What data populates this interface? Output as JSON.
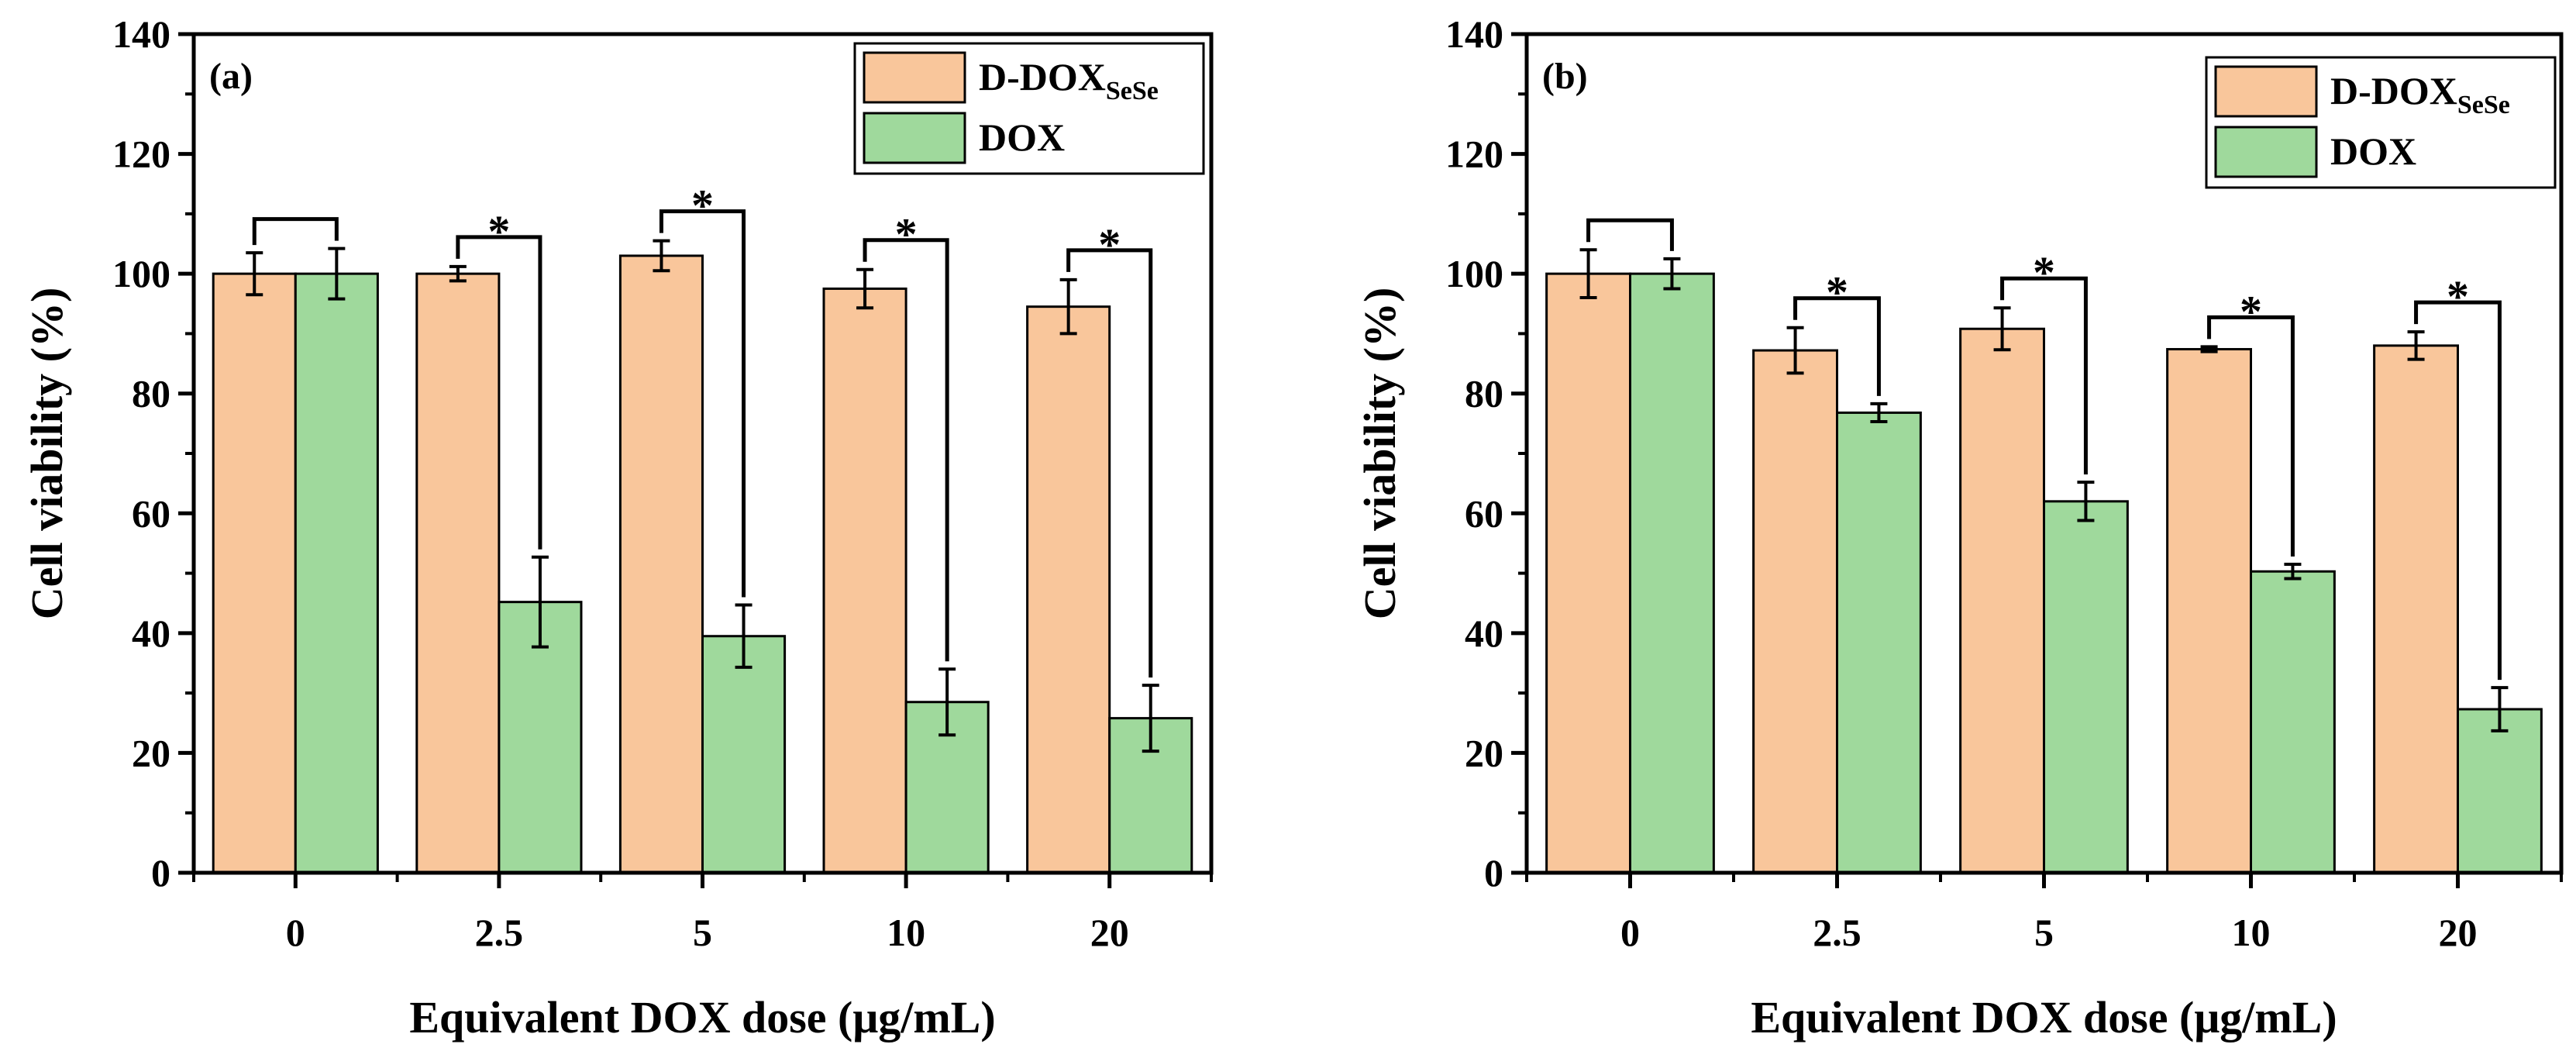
{
  "colors": {
    "ddox": "#f9c69b",
    "dox": "#9fd99c",
    "stroke": "#000000"
  },
  "chart_data": [
    {
      "type": "bar",
      "panel_label": "(a)",
      "xlabel": "Equivalent DOX dose (μg/mL)",
      "ylabel": "Cell viability (%)",
      "ylim": [
        0,
        140
      ],
      "yticks": [
        "0",
        "20",
        "40",
        "60",
        "80",
        "100",
        "120",
        "140"
      ],
      "categories": [
        "0",
        "2.5",
        "5",
        "10",
        "20"
      ],
      "legend_position": "top-right",
      "series": [
        {
          "name": "D-DOX",
          "name_subscript": "SeSe",
          "color_key": "ddox",
          "values": [
            100,
            100,
            103,
            97.5,
            94.5
          ],
          "errors": [
            3.5,
            1.2,
            2.5,
            3.2,
            4.5
          ]
        },
        {
          "name": "DOX",
          "color_key": "dox",
          "values": [
            100,
            45.2,
            39.5,
            28.5,
            25.8
          ],
          "errors": [
            4.2,
            7.5,
            5.2,
            5.5,
            5.5
          ]
        }
      ],
      "significance": [
        "",
        "*",
        "*",
        "*",
        "*"
      ]
    },
    {
      "type": "bar",
      "panel_label": "(b)",
      "xlabel": "Equivalent DOX dose  (μg/mL)",
      "ylabel": "Cell viability (%)",
      "ylim": [
        0,
        140
      ],
      "yticks": [
        "0",
        "20",
        "40",
        "60",
        "80",
        "100",
        "120",
        "140"
      ],
      "categories": [
        "0",
        "2.5",
        "5",
        "10",
        "20"
      ],
      "legend_position": "top-right",
      "series": [
        {
          "name": "D-DOX",
          "name_subscript": "SeSe",
          "color_key": "ddox",
          "values": [
            100,
            87.2,
            90.8,
            87.4,
            88
          ],
          "errors": [
            4,
            3.8,
            3.5,
            0.4,
            2.3
          ]
        },
        {
          "name": "DOX",
          "color_key": "dox",
          "values": [
            100,
            76.8,
            62,
            50.3,
            27.3
          ],
          "errors": [
            2.5,
            1.5,
            3.2,
            1.2,
            3.6
          ]
        }
      ],
      "significance": [
        "",
        "*",
        "*",
        "*",
        "*"
      ]
    }
  ]
}
